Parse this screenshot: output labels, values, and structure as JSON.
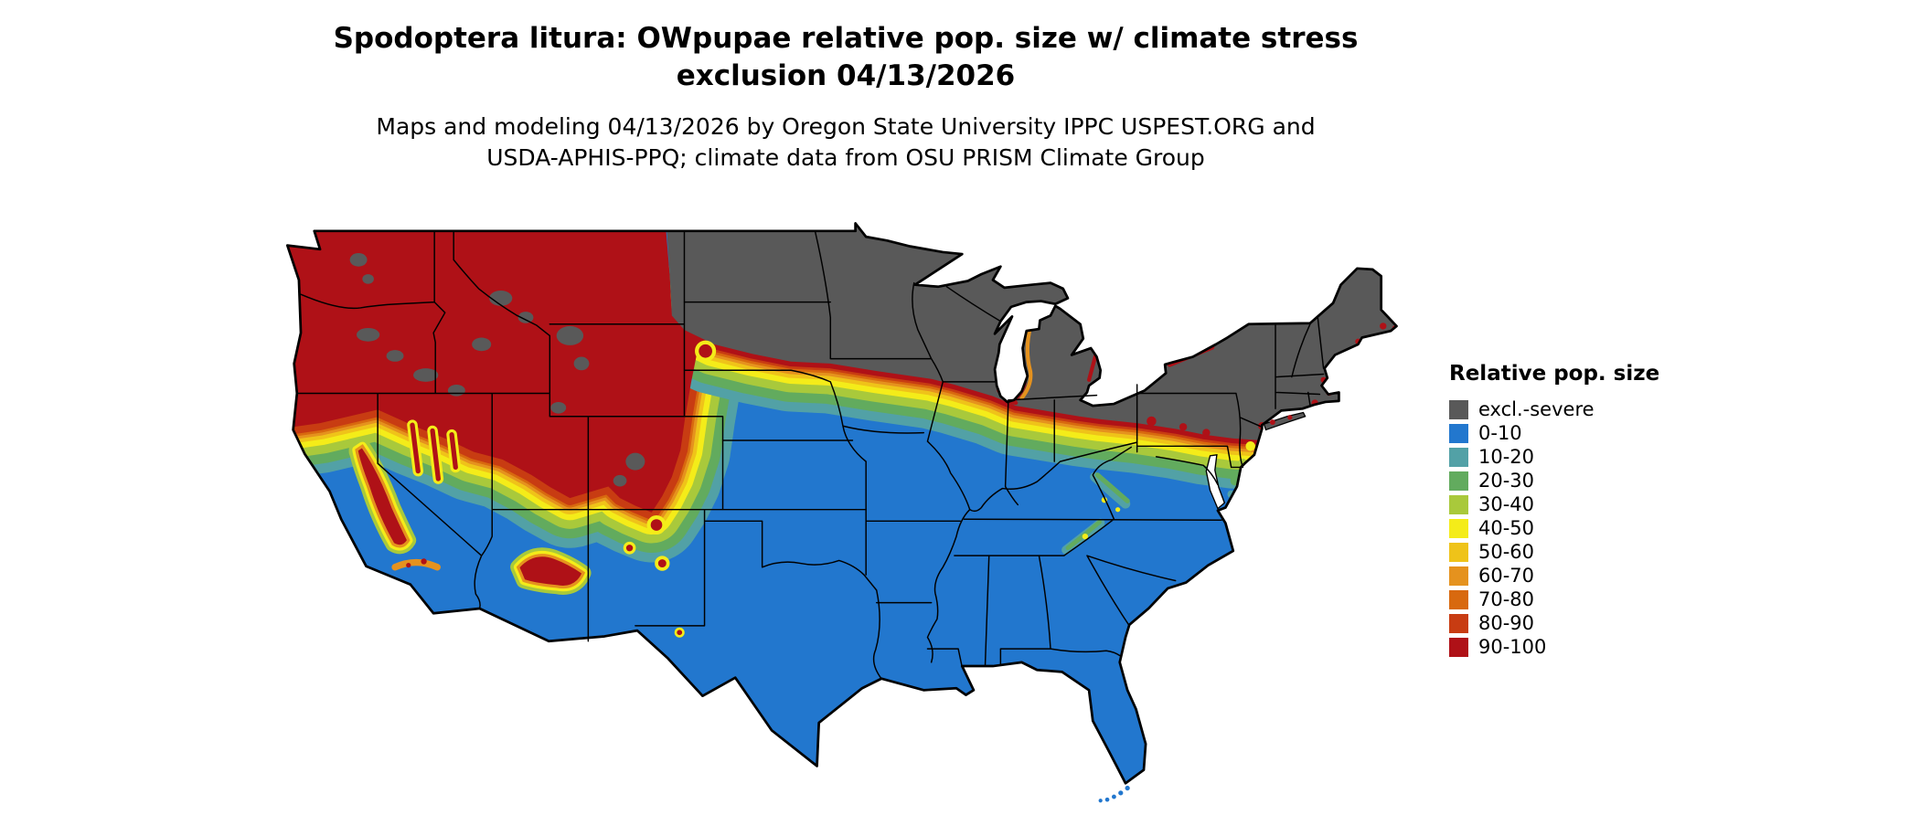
{
  "title": {
    "line1": "Spodoptera litura: OWpupae relative pop. size w/ climate stress",
    "line2": "exclusion 04/13/2026"
  },
  "subtitle": {
    "line1": "Maps and modeling 04/13/2026 by Oregon State University IPPC USPEST.ORG and",
    "line2": "USDA-APHIS-PPQ; climate data from OSU PRISM Climate Group"
  },
  "legend": {
    "title": "Relative pop. size",
    "entries": [
      {
        "key": "excl",
        "label": "excl.-severe",
        "color": "#595959"
      },
      {
        "key": "r0",
        "label": "0-10",
        "color": "#2277CE"
      },
      {
        "key": "r10",
        "label": "10-20",
        "color": "#52A1A6"
      },
      {
        "key": "r20",
        "label": "20-30",
        "color": "#62AB5E"
      },
      {
        "key": "r30",
        "label": "30-40",
        "color": "#A9C93B"
      },
      {
        "key": "r40",
        "label": "40-50",
        "color": "#F4EC19"
      },
      {
        "key": "r50",
        "label": "50-60",
        "color": "#EFC319"
      },
      {
        "key": "r60",
        "label": "60-70",
        "color": "#E5921E"
      },
      {
        "key": "r70",
        "label": "70-80",
        "color": "#D8690F"
      },
      {
        "key": "r80",
        "label": "80-90",
        "color": "#C83C12"
      },
      {
        "key": "r90",
        "label": "90-100",
        "color": "#AF1117"
      }
    ]
  },
  "map": {
    "region": "Conterminous United States",
    "type": "raster map of relative population size classes",
    "pattern": "Northern tier and New England excluded (gray); Pacific Northwest and Rockies high (red); transition band of orange/yellow/green across the central plains and Midwest; southern half low (blue)"
  }
}
